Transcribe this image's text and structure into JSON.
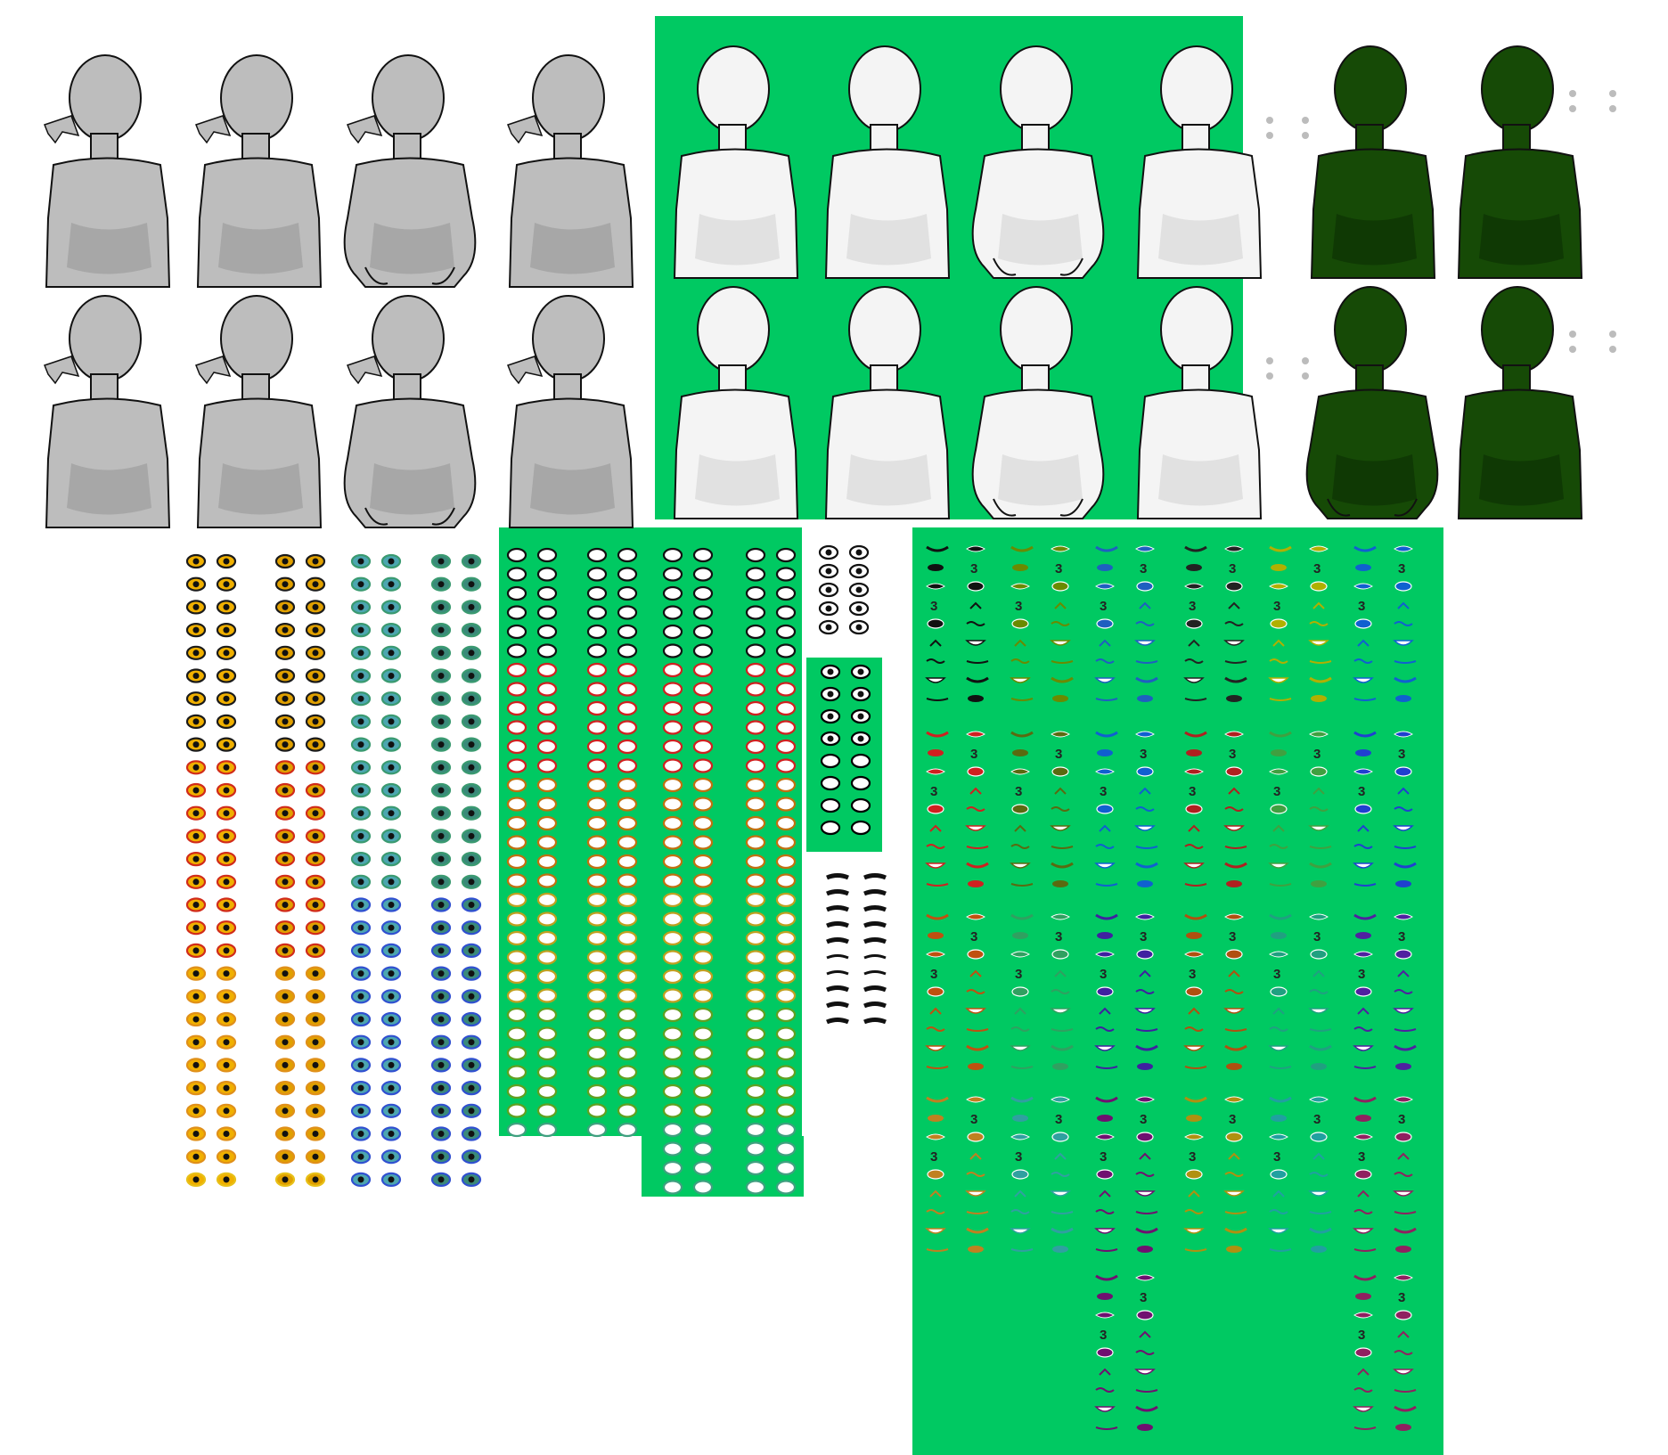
{
  "colors": {
    "green_bg": "#00c962",
    "gray_skin": "#bdbdbd",
    "gray_shade": "#9e9e9e",
    "white_skin": "#f4f4f4",
    "white_shade": "#d9d9d9",
    "dark_skin": "#164a06",
    "dark_shade": "#0d3204",
    "outline": "#111111"
  },
  "body_groups": [
    {
      "name": "gray-bodies",
      "skin": "gray"
    },
    {
      "name": "white-bodies",
      "skin": "white"
    },
    {
      "name": "dark-bodies",
      "skin": "dark"
    }
  ],
  "eye_color_columns": [
    "#f0b000",
    "#e0a000",
    "#4ca6b0",
    "#3a8a7a"
  ],
  "eye_row_colors": [
    "#1a1a1a",
    "#d12b1a",
    "#e0901a",
    "#e8c018",
    "#b0c020",
    "#80a020"
  ],
  "eye_color_columns_right": [
    "#3a9a70",
    "#3050d0",
    "#8030b0",
    "#c02080"
  ],
  "outline_eye_colors": [
    "#111111",
    "#d02020",
    "#c07010",
    "#c0a020",
    "#60a020",
    "#40a080",
    "#2050d0",
    "#8040c0",
    "#c02080"
  ],
  "mouth_colors": [
    [
      "#111111",
      "#d02020",
      "#c05010",
      "#c08020"
    ],
    [
      "#6a8a00",
      "#5a6a10",
      "#30a060",
      "#30a0a0"
    ],
    [
      "#1f5fc0",
      "#1060d0",
      "#4020a0",
      "#701070"
    ],
    [
      "#222222",
      "#b02020",
      "#b05010",
      "#b09010"
    ],
    [
      "#b0b000",
      "#40a040",
      "#20a080",
      "#20a0a0"
    ],
    [
      "#1060d0",
      "#2040d0",
      "#5020a0",
      "#902060"
    ]
  ],
  "mouth_three_text": "3"
}
